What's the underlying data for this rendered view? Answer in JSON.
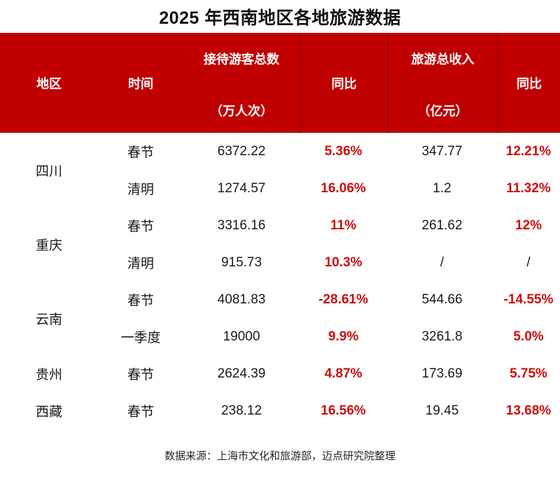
{
  "title": "2025 年西南地区各地旅游数据",
  "colors": {
    "header_bg": "#c00000",
    "header_divider": "#a30000",
    "accent_text": "#cc0e0e"
  },
  "table": {
    "headers": {
      "region": "地区",
      "time": "时间",
      "visitors_line1": "接待游客总数",
      "visitors_line2": "（万人次）",
      "visitors_yoy": "同比",
      "revenue_line1": "旅游总收入",
      "revenue_line2": "（亿元）",
      "revenue_yoy": "同比"
    },
    "rows": [
      {
        "region": "四川",
        "time": "春节",
        "visitors": "6372.22",
        "visitors_yoy": "5.36%",
        "revenue": "347.77",
        "revenue_yoy": "12.21%"
      },
      {
        "region": "",
        "time": "清明",
        "visitors": "1274.57",
        "visitors_yoy": "16.06%",
        "revenue": "1.2",
        "revenue_yoy": "11.32%"
      },
      {
        "region": "重庆",
        "time": "春节",
        "visitors": "3316.16",
        "visitors_yoy": "11%",
        "revenue": "261.62",
        "revenue_yoy": "12%"
      },
      {
        "region": "",
        "time": "清明",
        "visitors": "915.73",
        "visitors_yoy": "10.3%",
        "revenue": "/",
        "revenue_yoy": "/"
      },
      {
        "region": "云南",
        "time": "春节",
        "visitors": "4081.83",
        "visitors_yoy": "-28.61%",
        "revenue": "544.66",
        "revenue_yoy": "-14.55%"
      },
      {
        "region": "",
        "time": "一季度",
        "visitors": "19000",
        "visitors_yoy": "9.9%",
        "revenue": "3261.8",
        "revenue_yoy": "5.0%"
      },
      {
        "region": "贵州",
        "time": "春节",
        "visitors": "2624.39",
        "visitors_yoy": "4.87%",
        "revenue": "173.69",
        "revenue_yoy": "5.75%"
      },
      {
        "region": "西藏",
        "time": "春节",
        "visitors": "238.12",
        "visitors_yoy": "16.56%",
        "revenue": "19.45",
        "revenue_yoy": "13.68%"
      }
    ]
  },
  "footer": {
    "source": "数据来源：上海市文化和旅游部，迈点研究院整理"
  },
  "chart_data": {
    "type": "table",
    "title": "2025 年西南地区各地旅游数据",
    "columns": [
      "地区",
      "时间",
      "接待游客总数（万人次）",
      "同比",
      "旅游总收入（亿元）",
      "同比"
    ],
    "rows": [
      [
        "四川",
        "春节",
        "6372.22",
        "5.36%",
        "347.77",
        "12.21%"
      ],
      [
        "四川",
        "清明",
        "1274.57",
        "16.06%",
        "1.2",
        "11.32%"
      ],
      [
        "重庆",
        "春节",
        "3316.16",
        "11%",
        "261.62",
        "12%"
      ],
      [
        "重庆",
        "清明",
        "915.73",
        "10.3%",
        "/",
        "/"
      ],
      [
        "云南",
        "春节",
        "4081.83",
        "-28.61%",
        "544.66",
        "-14.55%"
      ],
      [
        "云南",
        "一季度",
        "19000",
        "9.9%",
        "3261.8",
        "5.0%"
      ],
      [
        "贵州",
        "春节",
        "2624.39",
        "4.87%",
        "173.69",
        "5.75%"
      ],
      [
        "西藏",
        "春节",
        "238.12",
        "16.56%",
        "19.45",
        "13.68%"
      ]
    ],
    "notes": "数据来源：上海市文化和旅游部，迈点研究院整理"
  }
}
